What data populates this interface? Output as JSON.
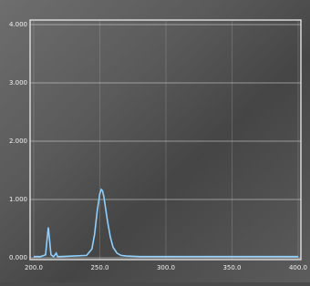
{
  "chart_data": {
    "type": "line",
    "x": [
      200,
      205,
      209,
      210,
      211,
      212,
      213,
      215,
      217,
      218,
      220,
      230,
      240,
      244,
      246,
      248,
      250,
      251,
      252,
      253,
      254,
      256,
      258,
      260,
      263,
      266,
      270,
      280,
      300,
      350,
      400
    ],
    "series": [
      {
        "color": "#8fd0ff",
        "values": [
          0.02,
          0.02,
          0.05,
          0.3,
          0.52,
          0.3,
          0.05,
          0.02,
          0.08,
          0.02,
          0.02,
          0.03,
          0.04,
          0.15,
          0.4,
          0.8,
          1.1,
          1.17,
          1.15,
          1.05,
          0.9,
          0.6,
          0.35,
          0.18,
          0.08,
          0.04,
          0.03,
          0.02,
          0.02,
          0.02,
          0.02
        ]
      }
    ],
    "xlim": [
      200,
      400
    ],
    "xticks": [
      {
        "value": 200,
        "label": "200.0"
      },
      {
        "value": 250,
        "label": "250.0"
      },
      {
        "value": 300,
        "label": "300.0"
      },
      {
        "value": 350,
        "label": "350.0"
      },
      {
        "value": 400,
        "label": "400.0"
      }
    ],
    "ylim": [
      0,
      4
    ],
    "yticks": [
      {
        "value": 0,
        "label": "0.000"
      },
      {
        "value": 1,
        "label": "1.000"
      },
      {
        "value": 2,
        "label": "2.000"
      },
      {
        "value": 3,
        "label": "3.000"
      },
      {
        "value": 4,
        "label": "4.000"
      }
    ],
    "grid": true
  }
}
